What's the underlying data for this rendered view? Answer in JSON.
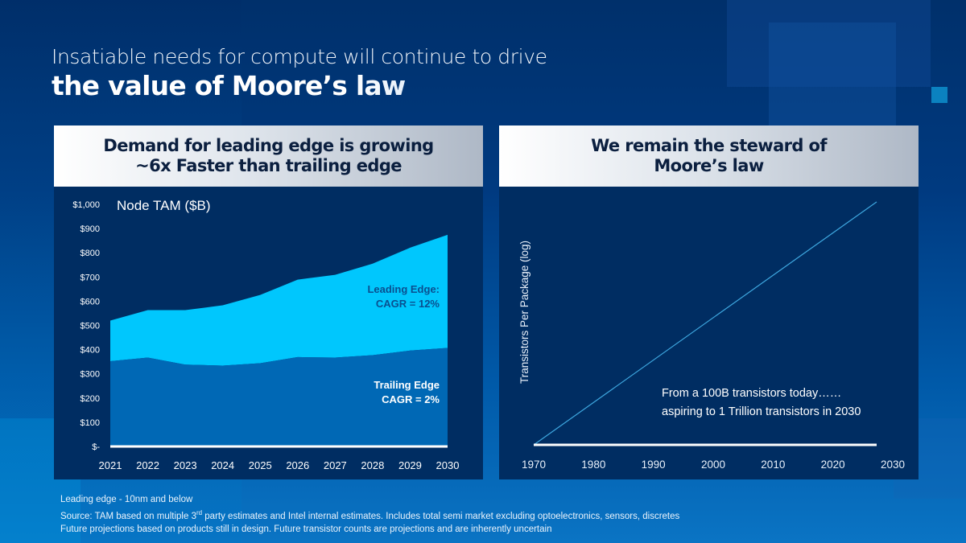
{
  "slide": {
    "title_line1": "Insatiable needs for compute will continue to drive",
    "title_line2": "the value of Moore’s law"
  },
  "left_panel": {
    "header_line1": "Demand for leading edge is growing",
    "header_line2": "~6x Faster than trailing edge"
  },
  "right_panel": {
    "header_line1": "We remain the steward of",
    "header_line2": "Moore’s law"
  },
  "footer": {
    "line1": "Leading edge - 10nm and below",
    "line2_pre": "Source: TAM based on multiple 3",
    "line2_sup": "rd",
    "line2_post": " party estimates and Intel internal estimates. Includes total semi market excluding optoelectronics, sensors, discretes",
    "line3": "Future projections based on products still in design. Future transistor counts are projections and are inherently uncertain"
  },
  "colors": {
    "leading_edge": "#00c7fd",
    "trailing_edge": "#0068b5",
    "trend_line": "#3ea8e0",
    "axis_line": "#ffffff",
    "annotation_dark": "#0a4f8f"
  },
  "chart_data": [
    {
      "type": "area",
      "stacked": true,
      "title": "Node TAM ($B)",
      "xlabel": "",
      "ylabel": "",
      "categories": [
        "2021",
        "2022",
        "2023",
        "2024",
        "2025",
        "2026",
        "2027",
        "2028",
        "2029",
        "2030"
      ],
      "series": [
        {
          "name": "Trailing Edge",
          "values": [
            352,
            367,
            338,
            334,
            344,
            369,
            367,
            377,
            396,
            407
          ]
        },
        {
          "name": "Leading Edge",
          "values": [
            168,
            196,
            225,
            249,
            282,
            320,
            342,
            378,
            425,
            467
          ]
        }
      ],
      "ylim": [
        0,
        1000
      ],
      "yticks": [
        0,
        100,
        200,
        300,
        400,
        500,
        600,
        700,
        800,
        900,
        1000
      ],
      "ytick_labels": [
        "$-",
        "$100",
        "$200",
        "$300",
        "$400",
        "$500",
        "$600",
        "$700",
        "$800",
        "$900",
        "$1,000"
      ],
      "grid": false,
      "annotations": [
        {
          "text_line1": "Leading Edge:",
          "text_line2": "CAGR = 12%",
          "series": "Leading Edge"
        },
        {
          "text_line1": "Trailing Edge",
          "text_line2": "CAGR = 2%",
          "series": "Trailing Edge"
        }
      ]
    },
    {
      "type": "line",
      "title": "",
      "xlabel": "",
      "ylabel": "Transistors Per Package (log)",
      "yscale": "log",
      "x": [
        1970,
        2030
      ],
      "series": [
        {
          "name": "Transistors per package trend",
          "values": [
            0,
            1
          ]
        }
      ],
      "xlim": [
        1970,
        2030
      ],
      "xticks": [
        "1970",
        "1980",
        "1990",
        "2000",
        "2010",
        "2020",
        "2030"
      ],
      "grid": false,
      "annotations": [
        {
          "text_line1": "From a 100B transistors today……",
          "text_line2": "aspiring to 1 Trillion transistors in 2030"
        }
      ]
    }
  ]
}
